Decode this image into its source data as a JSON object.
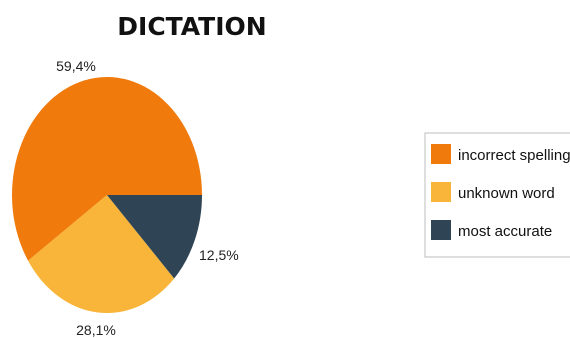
{
  "chart_data": {
    "type": "pie",
    "title": "DICTATION",
    "categories": [
      "incorrect spelling",
      "unknown word",
      "most accurate"
    ],
    "values": [
      59.4,
      28.1,
      12.5
    ],
    "labels": [
      "59,4%",
      "28,1%",
      "12,5%"
    ],
    "colors": [
      "#F07A0C",
      "#F8B53A",
      "#2F4556"
    ],
    "legend_position": "right"
  }
}
